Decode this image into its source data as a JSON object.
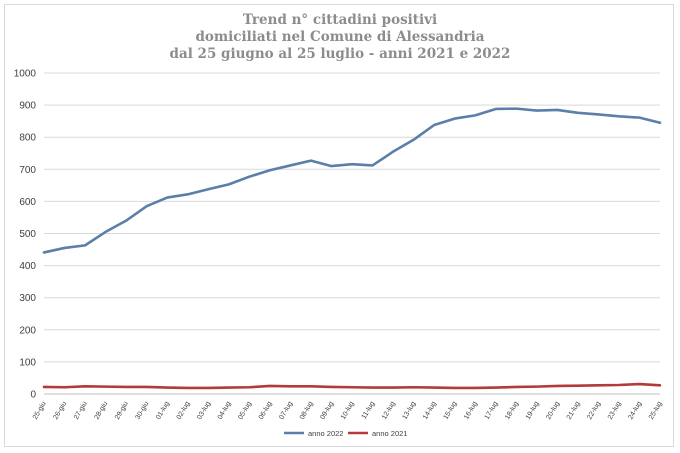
{
  "chart_data": {
    "type": "line",
    "title_lines": [
      "Trend n° cittadini positivi",
      "domiciliati nel Comune di Alessandria",
      "dal 25 giugno al 25 luglio - anni 2021 e 2022"
    ],
    "xlabel": "",
    "ylabel": "",
    "ylim": [
      0,
      1000
    ],
    "yticks": [
      0,
      100,
      200,
      300,
      400,
      500,
      600,
      700,
      800,
      900,
      1000
    ],
    "grid": true,
    "legend_position": "bottom",
    "categories": [
      "25-giu",
      "26-giu",
      "27-giu",
      "28-giu",
      "29-giu",
      "30-giu",
      "01-lug",
      "02-lug",
      "03-lug",
      "04-lug",
      "05-lug",
      "06-lug",
      "07-lug",
      "08-lug",
      "09-lug",
      "10-lug",
      "11-lug",
      "12-lug",
      "13-lug",
      "14-lug",
      "15-lug",
      "16-lug",
      "17-lug",
      "18-lug",
      "19-lug",
      "20-lug",
      "21-lug",
      "22-lug",
      "23-lug",
      "24-lug",
      "25-lug"
    ],
    "series": [
      {
        "name": "anno 2022",
        "color": "#5b7fa8",
        "values": [
          441,
          455,
          463,
          505,
          540,
          585,
          612,
          622,
          638,
          653,
          677,
          697,
          712,
          727,
          710,
          716,
          712,
          755,
          792,
          838,
          858,
          868,
          888,
          889,
          883,
          885,
          876,
          871,
          865,
          861,
          845
        ]
      },
      {
        "name": "anno 2021",
        "color": "#b23a3a",
        "values": [
          22,
          21,
          24,
          23,
          22,
          22,
          20,
          19,
          19,
          20,
          21,
          25,
          24,
          24,
          22,
          21,
          20,
          20,
          21,
          20,
          19,
          19,
          20,
          22,
          23,
          25,
          26,
          27,
          28,
          31,
          27
        ]
      }
    ]
  }
}
